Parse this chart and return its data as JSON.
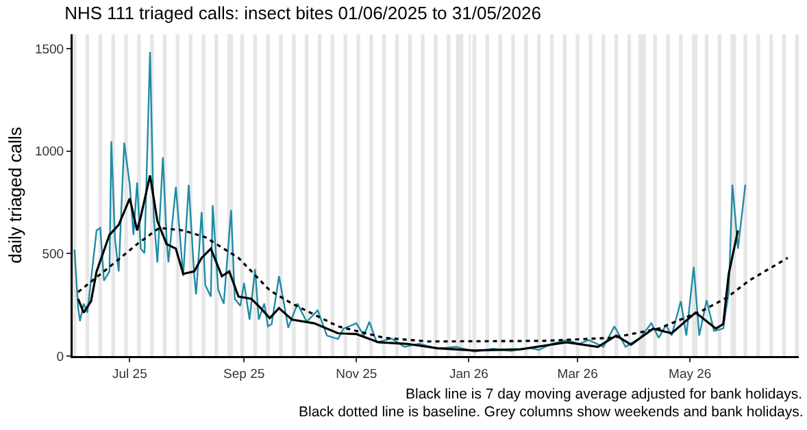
{
  "chart_data": {
    "type": "line",
    "title": "NHS 111 triaged calls: insect bites 01/06/2025 to 31/05/2026",
    "ylabel": "daily triaged calls",
    "annotations": [
      "Black line is 7 day moving average adjusted for bank holidays.",
      "Black dotted line is baseline. Grey columns show weekends and bank holidays."
    ],
    "xlim": [
      "2025-05-31",
      "2026-06-29"
    ],
    "xticks": [
      {
        "value": "2025-07-01",
        "label": "Jul 25"
      },
      {
        "value": "2025-09-01",
        "label": "Sep 25"
      },
      {
        "value": "2025-11-01",
        "label": "Nov 25"
      },
      {
        "value": "2026-01-01",
        "label": "Jan 26"
      },
      {
        "value": "2026-03-01",
        "label": "Mar 26"
      },
      {
        "value": "2026-05-01",
        "label": "May 26"
      }
    ],
    "ylim": [
      0,
      1570
    ],
    "yticks": [
      0,
      500,
      1000,
      1500
    ],
    "series": [
      {
        "color": "#1f8ca5",
        "line_style": "solid",
        "x": [
          "2025-06-01",
          "2025-06-03",
          "2025-06-04",
          "2025-06-06",
          "2025-06-08",
          "2025-06-13",
          "2025-06-15",
          "2025-06-17",
          "2025-06-20",
          "2025-06-21",
          "2025-06-23",
          "2025-06-25",
          "2025-06-28",
          "2025-07-01",
          "2025-07-03",
          "2025-07-05",
          "2025-07-07",
          "2025-07-09",
          "2025-07-12",
          "2025-07-14",
          "2025-07-16",
          "2025-07-19",
          "2025-07-21",
          "2025-07-22",
          "2025-07-26",
          "2025-07-28",
          "2025-07-30",
          "2025-08-02",
          "2025-08-05",
          "2025-08-06",
          "2025-08-09",
          "2025-08-11",
          "2025-08-14",
          "2025-08-15",
          "2025-08-18",
          "2025-08-21",
          "2025-08-25",
          "2025-08-27",
          "2025-08-30",
          "2025-09-01",
          "2025-09-04",
          "2025-09-07",
          "2025-09-09",
          "2025-09-12",
          "2025-09-14",
          "2025-09-16",
          "2025-09-20",
          "2025-09-25",
          "2025-09-30",
          "2025-10-05",
          "2025-10-11",
          "2025-10-16",
          "2025-10-22",
          "2025-10-25",
          "2025-11-01",
          "2025-11-05",
          "2025-11-08",
          "2025-11-12",
          "2025-11-20",
          "2025-11-27",
          "2025-12-05",
          "2025-12-15",
          "2025-12-25",
          "2026-01-04",
          "2026-01-14",
          "2026-01-24",
          "2026-02-03",
          "2026-02-08",
          "2026-02-15",
          "2026-02-23",
          "2026-03-02",
          "2026-03-07",
          "2026-03-15",
          "2026-03-21",
          "2026-03-27",
          "2026-04-04",
          "2026-04-10",
          "2026-04-14",
          "2026-04-18",
          "2026-04-21",
          "2026-04-26",
          "2026-04-29",
          "2026-05-03",
          "2026-05-06",
          "2026-05-10",
          "2026-05-14",
          "2026-05-19",
          "2026-05-22",
          "2026-05-24",
          "2026-05-27",
          "2026-05-31"
        ],
        "values": [
          520,
          234,
          170,
          256,
          212,
          613,
          625,
          368,
          413,
          1048,
          569,
          413,
          1041,
          836,
          591,
          847,
          524,
          502,
          1483,
          680,
          457,
          970,
          569,
          457,
          825,
          613,
          390,
          836,
          390,
          301,
          702,
          346,
          290,
          736,
          323,
          256,
          713,
          279,
          245,
          357,
          178,
          424,
          178,
          256,
          145,
          156,
          390,
          138,
          256,
          167,
          223,
          100,
          83,
          134,
          160,
          100,
          167,
          67,
          85,
          45,
          60,
          36,
          45,
          22,
          36,
          25,
          40,
          30,
          60,
          78,
          60,
          78,
          45,
          145,
          45,
          89,
          160,
          89,
          152,
          100,
          268,
          100,
          435,
          100,
          272,
          123,
          134,
          312,
          836,
          524,
          836
        ]
      },
      {
        "color": "#000000",
        "line_style": "solid",
        "x": [
          "2025-06-03",
          "2025-06-06",
          "2025-06-10",
          "2025-06-13",
          "2025-06-20",
          "2025-06-25",
          "2025-07-01",
          "2025-07-05",
          "2025-07-07",
          "2025-07-12",
          "2025-07-16",
          "2025-07-21",
          "2025-07-26",
          "2025-07-30",
          "2025-08-05",
          "2025-08-09",
          "2025-08-14",
          "2025-08-20",
          "2025-08-24",
          "2025-08-29",
          "2025-09-05",
          "2025-09-10",
          "2025-09-15",
          "2025-09-20",
          "2025-09-27",
          "2025-10-09",
          "2025-10-22",
          "2025-11-01",
          "2025-11-13",
          "2025-11-28",
          "2025-12-15",
          "2026-01-04",
          "2026-01-29",
          "2026-02-23",
          "2026-03-12",
          "2026-03-22",
          "2026-03-30",
          "2026-04-11",
          "2026-04-21",
          "2026-05-04",
          "2026-05-15",
          "2026-05-19",
          "2026-05-22",
          "2026-05-27"
        ],
        "values": [
          279,
          212,
          268,
          413,
          591,
          640,
          769,
          613,
          680,
          881,
          658,
          546,
          524,
          401,
          413,
          479,
          524,
          390,
          413,
          290,
          279,
          234,
          185,
          234,
          178,
          160,
          111,
          107,
          67,
          60,
          38,
          27,
          33,
          67,
          45,
          100,
          56,
          134,
          111,
          212,
          134,
          156,
          401,
          613
        ]
      },
      {
        "color": "#000000",
        "line_style": "dotted",
        "x": [
          "2025-06-03",
          "2025-06-17",
          "2025-07-05",
          "2025-07-17",
          "2025-07-30",
          "2025-08-11",
          "2025-08-29",
          "2025-09-15",
          "2025-09-27",
          "2025-10-22",
          "2025-11-16",
          "2025-12-10",
          "2026-02-10",
          "2026-03-20",
          "2026-04-14",
          "2026-05-08",
          "2026-05-21",
          "2026-06-02",
          "2026-06-23"
        ],
        "values": [
          312,
          413,
          546,
          625,
          613,
          580,
          479,
          320,
          256,
          145,
          89,
          71,
          74,
          89,
          134,
          223,
          285,
          368,
          479
        ]
      }
    ],
    "bands": [
      {
        "axis": "x",
        "from": "2025-05-31",
        "to": "2025-06-02",
        "color": "#e6e6e6"
      },
      {
        "axis": "x",
        "from": "2025-06-07",
        "to": "2025-06-09",
        "color": "#e6e6e6"
      },
      {
        "axis": "x",
        "from": "2025-06-14",
        "to": "2025-06-16",
        "color": "#e6e6e6"
      },
      {
        "axis": "x",
        "from": "2025-06-21",
        "to": "2025-06-23",
        "color": "#e6e6e6"
      },
      {
        "axis": "x",
        "from": "2025-06-28",
        "to": "2025-06-30",
        "color": "#e6e6e6"
      },
      {
        "axis": "x",
        "from": "2025-07-05",
        "to": "2025-07-07",
        "color": "#e6e6e6"
      },
      {
        "axis": "x",
        "from": "2025-07-12",
        "to": "2025-07-14",
        "color": "#e6e6e6"
      },
      {
        "axis": "x",
        "from": "2025-07-19",
        "to": "2025-07-21",
        "color": "#e6e6e6"
      },
      {
        "axis": "x",
        "from": "2025-07-26",
        "to": "2025-07-28",
        "color": "#e6e6e6"
      },
      {
        "axis": "x",
        "from": "2025-08-02",
        "to": "2025-08-04",
        "color": "#e6e6e6"
      },
      {
        "axis": "x",
        "from": "2025-08-09",
        "to": "2025-08-11",
        "color": "#e6e6e6"
      },
      {
        "axis": "x",
        "from": "2025-08-16",
        "to": "2025-08-18",
        "color": "#e6e6e6"
      },
      {
        "axis": "x",
        "from": "2025-08-23",
        "to": "2025-08-26",
        "color": "#e6e6e6"
      },
      {
        "axis": "x",
        "from": "2025-08-30",
        "to": "2025-09-01",
        "color": "#e6e6e6"
      },
      {
        "axis": "x",
        "from": "2025-09-06",
        "to": "2025-09-08",
        "color": "#e6e6e6"
      },
      {
        "axis": "x",
        "from": "2025-09-13",
        "to": "2025-09-15",
        "color": "#e6e6e6"
      },
      {
        "axis": "x",
        "from": "2025-09-20",
        "to": "2025-09-22",
        "color": "#e6e6e6"
      },
      {
        "axis": "x",
        "from": "2025-09-27",
        "to": "2025-09-29",
        "color": "#e6e6e6"
      },
      {
        "axis": "x",
        "from": "2025-10-04",
        "to": "2025-10-06",
        "color": "#e6e6e6"
      },
      {
        "axis": "x",
        "from": "2025-10-11",
        "to": "2025-10-13",
        "color": "#e6e6e6"
      },
      {
        "axis": "x",
        "from": "2025-10-18",
        "to": "2025-10-20",
        "color": "#e6e6e6"
      },
      {
        "axis": "x",
        "from": "2025-10-25",
        "to": "2025-10-27",
        "color": "#e6e6e6"
      },
      {
        "axis": "x",
        "from": "2025-11-01",
        "to": "2025-11-03",
        "color": "#e6e6e6"
      },
      {
        "axis": "x",
        "from": "2025-11-08",
        "to": "2025-11-10",
        "color": "#e6e6e6"
      },
      {
        "axis": "x",
        "from": "2025-11-15",
        "to": "2025-11-17",
        "color": "#e6e6e6"
      },
      {
        "axis": "x",
        "from": "2025-11-22",
        "to": "2025-11-24",
        "color": "#e6e6e6"
      },
      {
        "axis": "x",
        "from": "2025-11-29",
        "to": "2025-12-01",
        "color": "#e6e6e6"
      },
      {
        "axis": "x",
        "from": "2025-12-06",
        "to": "2025-12-08",
        "color": "#e6e6e6"
      },
      {
        "axis": "x",
        "from": "2025-12-13",
        "to": "2025-12-15",
        "color": "#e6e6e6"
      },
      {
        "axis": "x",
        "from": "2025-12-20",
        "to": "2025-12-22",
        "color": "#e6e6e6"
      },
      {
        "axis": "x",
        "from": "2025-12-25",
        "to": "2025-12-29",
        "color": "#e6e6e6"
      },
      {
        "axis": "x",
        "from": "2026-01-01",
        "to": "2026-01-02",
        "color": "#e6e6e6"
      },
      {
        "axis": "x",
        "from": "2026-01-03",
        "to": "2026-01-05",
        "color": "#e6e6e6"
      },
      {
        "axis": "x",
        "from": "2026-01-10",
        "to": "2026-01-12",
        "color": "#e6e6e6"
      },
      {
        "axis": "x",
        "from": "2026-01-17",
        "to": "2026-01-19",
        "color": "#e6e6e6"
      },
      {
        "axis": "x",
        "from": "2026-01-24",
        "to": "2026-01-26",
        "color": "#e6e6e6"
      },
      {
        "axis": "x",
        "from": "2026-01-31",
        "to": "2026-02-02",
        "color": "#e6e6e6"
      },
      {
        "axis": "x",
        "from": "2026-02-07",
        "to": "2026-02-09",
        "color": "#e6e6e6"
      },
      {
        "axis": "x",
        "from": "2026-02-14",
        "to": "2026-02-16",
        "color": "#e6e6e6"
      },
      {
        "axis": "x",
        "from": "2026-02-21",
        "to": "2026-02-23",
        "color": "#e6e6e6"
      },
      {
        "axis": "x",
        "from": "2026-02-28",
        "to": "2026-03-02",
        "color": "#e6e6e6"
      },
      {
        "axis": "x",
        "from": "2026-03-07",
        "to": "2026-03-09",
        "color": "#e6e6e6"
      },
      {
        "axis": "x",
        "from": "2026-03-14",
        "to": "2026-03-16",
        "color": "#e6e6e6"
      },
      {
        "axis": "x",
        "from": "2026-03-21",
        "to": "2026-03-23",
        "color": "#e6e6e6"
      },
      {
        "axis": "x",
        "from": "2026-03-28",
        "to": "2026-03-30",
        "color": "#e6e6e6"
      },
      {
        "axis": "x",
        "from": "2026-04-03",
        "to": "2026-04-07",
        "color": "#e6e6e6"
      },
      {
        "axis": "x",
        "from": "2026-04-11",
        "to": "2026-04-13",
        "color": "#e6e6e6"
      },
      {
        "axis": "x",
        "from": "2026-04-18",
        "to": "2026-04-20",
        "color": "#e6e6e6"
      },
      {
        "axis": "x",
        "from": "2026-04-25",
        "to": "2026-04-27",
        "color": "#e6e6e6"
      },
      {
        "axis": "x",
        "from": "2026-05-02",
        "to": "2026-05-05",
        "color": "#e6e6e6"
      },
      {
        "axis": "x",
        "from": "2026-05-09",
        "to": "2026-05-11",
        "color": "#e6e6e6"
      },
      {
        "axis": "x",
        "from": "2026-05-16",
        "to": "2026-05-18",
        "color": "#e6e6e6"
      },
      {
        "axis": "x",
        "from": "2026-05-23",
        "to": "2026-05-26",
        "color": "#e6e6e6"
      },
      {
        "axis": "x",
        "from": "2026-05-30",
        "to": "2026-06-01",
        "color": "#e6e6e6"
      },
      {
        "axis": "x",
        "from": "2026-06-06",
        "to": "2026-06-08",
        "color": "#e6e6e6"
      },
      {
        "axis": "x",
        "from": "2026-06-13",
        "to": "2026-06-15",
        "color": "#e6e6e6"
      },
      {
        "axis": "x",
        "from": "2026-06-20",
        "to": "2026-06-22",
        "color": "#e6e6e6"
      },
      {
        "axis": "x",
        "from": "2026-06-27",
        "to": "2026-06-29",
        "color": "#e6e6e6"
      }
    ]
  }
}
